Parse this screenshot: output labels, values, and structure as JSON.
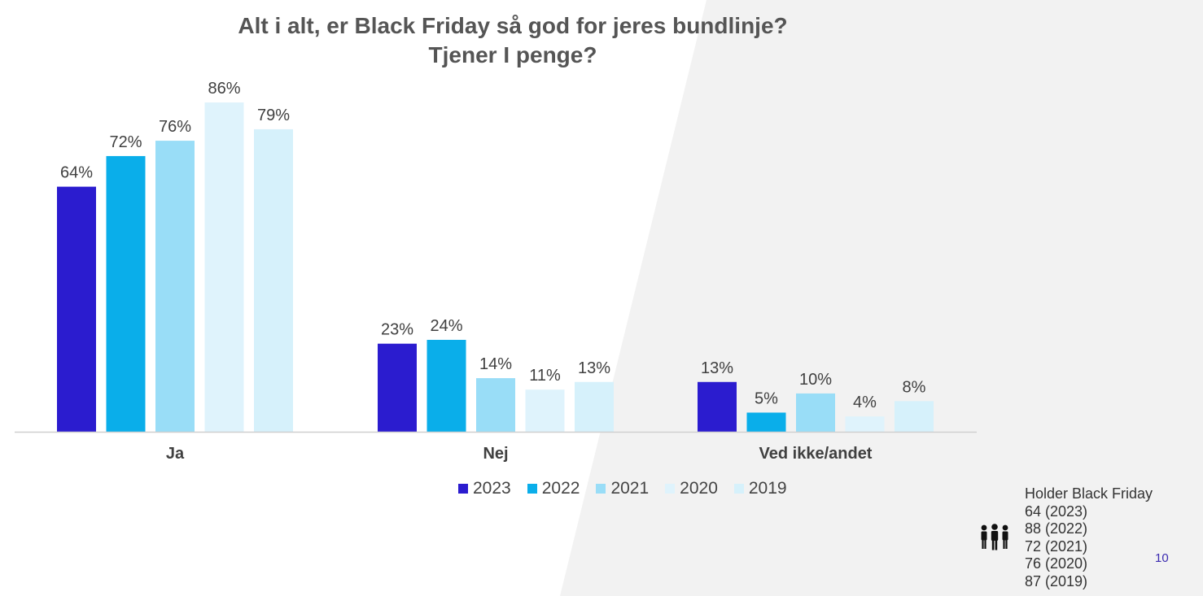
{
  "title_line1": "Alt i alt, er Black Friday så god for jeres bundlinje?",
  "title_line2": "Tjener I penge?",
  "chart_data": {
    "type": "bar",
    "title": "Alt i alt, er Black Friday så god for jeres bundlinje? Tjener I penge?",
    "categories": [
      "Ja",
      "Nej",
      "Ved ikke/andet"
    ],
    "series": [
      {
        "name": "2023",
        "values": [
          64,
          23,
          13
        ],
        "labels": [
          "64%",
          "23%",
          "13%"
        ],
        "color": "#2b1ccf"
      },
      {
        "name": "2022",
        "values": [
          72,
          24,
          5
        ],
        "labels": [
          "72%",
          "24%",
          "5%"
        ],
        "color": "#0aaeea"
      },
      {
        "name": "2021",
        "values": [
          76,
          14,
          10
        ],
        "labels": [
          "76%",
          "14%",
          "10%"
        ],
        "color": "#99ddf7"
      },
      {
        "name": "2020",
        "values": [
          86,
          11,
          4
        ],
        "labels": [
          "86%",
          "11%",
          "4%"
        ],
        "color": "#dff3fc"
      },
      {
        "name": "2019",
        "values": [
          79,
          13,
          8
        ],
        "labels": [
          "79%",
          "13%",
          "8%"
        ],
        "color": "#d6f1fb"
      }
    ],
    "ylim": [
      0,
      100
    ],
    "grid": false,
    "legend": "bottom"
  },
  "legend_items": [
    "2023",
    "2022",
    "2021",
    "2020",
    "2019"
  ],
  "note": {
    "header": "Holder Black Friday",
    "lines": [
      "64 (2023)",
      "88 (2022)",
      "72 (2021)",
      "76 (2020)",
      "87 (2019)"
    ]
  },
  "icons": {
    "people": "people-group-icon"
  },
  "page_number": "10"
}
